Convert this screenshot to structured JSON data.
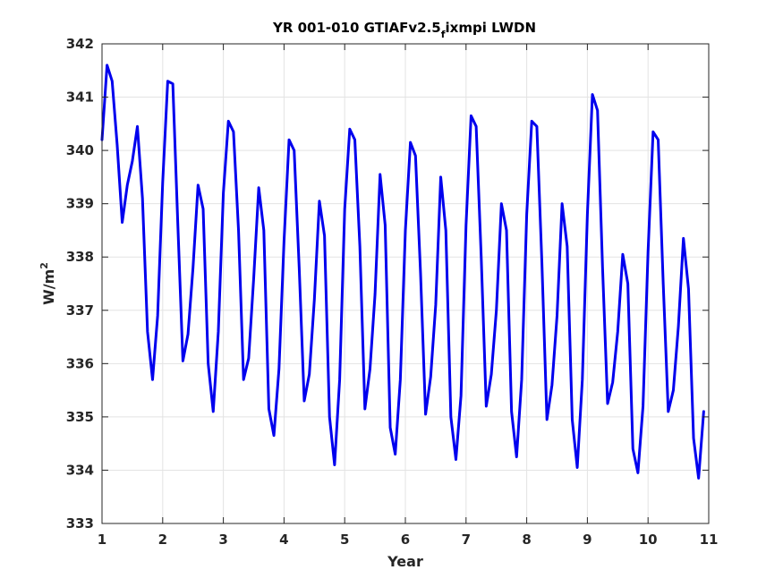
{
  "chart_data": {
    "type": "line",
    "title": {
      "prefix": "YR 001-010 GTIAFv2.5",
      "subscript": "f",
      "suffix": "ixmpi LWDN"
    },
    "xlabel": "Year",
    "ylabel": {
      "base": "W/m",
      "superscript": "2"
    },
    "xlim": [
      1,
      11
    ],
    "ylim": [
      333,
      342
    ],
    "xticks": [
      1,
      2,
      3,
      4,
      5,
      6,
      7,
      8,
      9,
      10,
      11
    ],
    "yticks": [
      333,
      334,
      335,
      336,
      337,
      338,
      339,
      340,
      341,
      342
    ],
    "grid": true,
    "line_color": "#0000ee",
    "series": [
      {
        "x": [
          1.0,
          1.083,
          1.167,
          1.25,
          1.333,
          1.417,
          1.5,
          1.583,
          1.667,
          1.75,
          1.833,
          1.917,
          2.0,
          2.083,
          2.167,
          2.25,
          2.333,
          2.417,
          2.5,
          2.583,
          2.667,
          2.75,
          2.833,
          2.917,
          3.0,
          3.083,
          3.167,
          3.25,
          3.333,
          3.417,
          3.5,
          3.583,
          3.667,
          3.75,
          3.833,
          3.917,
          4.0,
          4.083,
          4.167,
          4.25,
          4.333,
          4.417,
          4.5,
          4.583,
          4.667,
          4.75,
          4.833,
          4.917,
          5.0,
          5.083,
          5.167,
          5.25,
          5.333,
          5.417,
          5.5,
          5.583,
          5.667,
          5.75,
          5.833,
          5.917,
          6.0,
          6.083,
          6.167,
          6.25,
          6.333,
          6.417,
          6.5,
          6.583,
          6.667,
          6.75,
          6.833,
          6.917,
          7.0,
          7.083,
          7.167,
          7.25,
          7.333,
          7.417,
          7.5,
          7.583,
          7.667,
          7.75,
          7.833,
          7.917,
          8.0,
          8.083,
          8.167,
          8.25,
          8.333,
          8.417,
          8.5,
          8.583,
          8.667,
          8.75,
          8.833,
          8.917,
          9.0,
          9.083,
          9.167,
          9.25,
          9.333,
          9.417,
          9.5,
          9.583,
          9.667,
          9.75,
          9.833,
          9.917,
          10.0,
          10.083,
          10.167,
          10.25,
          10.333,
          10.417,
          10.5,
          10.583,
          10.667,
          10.75,
          10.833,
          10.917
        ],
        "values": [
          340.2,
          341.6,
          341.3,
          340.1,
          338.65,
          339.35,
          339.8,
          340.45,
          339.1,
          336.6,
          335.7,
          336.9,
          339.4,
          341.3,
          341.25,
          338.6,
          336.05,
          336.55,
          337.8,
          339.35,
          338.9,
          336.0,
          335.1,
          336.6,
          339.2,
          340.55,
          340.35,
          338.5,
          335.7,
          336.1,
          337.6,
          339.3,
          338.5,
          335.15,
          334.65,
          335.9,
          338.3,
          340.2,
          340.0,
          337.8,
          335.3,
          335.8,
          337.2,
          339.05,
          338.4,
          335.0,
          334.1,
          335.7,
          338.9,
          340.4,
          340.2,
          338.2,
          335.15,
          335.9,
          337.3,
          339.55,
          338.6,
          334.8,
          334.3,
          335.7,
          338.5,
          340.15,
          339.9,
          337.7,
          335.05,
          335.75,
          337.1,
          339.5,
          338.5,
          335.0,
          334.2,
          335.4,
          338.6,
          340.65,
          340.45,
          338.0,
          335.2,
          335.8,
          337.0,
          339.0,
          338.5,
          335.1,
          334.25,
          335.7,
          338.8,
          340.55,
          340.45,
          337.9,
          334.95,
          335.6,
          336.9,
          339.0,
          338.2,
          334.95,
          334.05,
          335.7,
          338.8,
          341.05,
          340.75,
          337.8,
          335.25,
          335.65,
          336.6,
          338.05,
          337.5,
          334.4,
          333.95,
          335.2,
          338.1,
          340.35,
          340.2,
          337.5,
          335.1,
          335.5,
          336.7,
          338.35,
          337.4,
          334.6,
          333.85,
          335.1
        ]
      }
    ]
  }
}
